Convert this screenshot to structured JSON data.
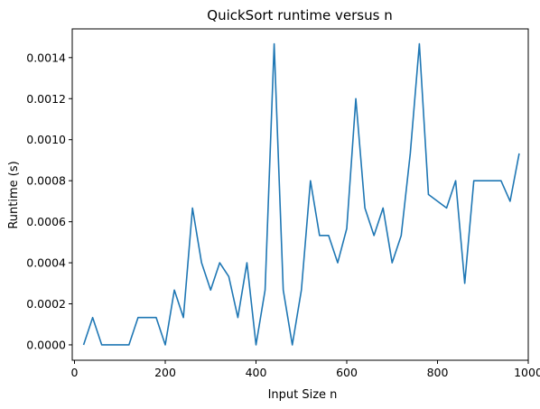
{
  "chart_data": {
    "type": "line",
    "title": "QuickSort runtime versus n",
    "xlabel": "Input Size n",
    "ylabel": "Runtime (s)",
    "xlim": [
      -5,
      1000
    ],
    "ylim": [
      -7.5e-05,
      0.00154
    ],
    "xticks": [
      0,
      200,
      400,
      600,
      800,
      1000
    ],
    "xtick_labels": [
      "0",
      "200",
      "400",
      "600",
      "800",
      "1000"
    ],
    "yticks": [
      0.0,
      0.0002,
      0.0004,
      0.0006,
      0.0008,
      0.001,
      0.0012,
      0.0014
    ],
    "ytick_labels": [
      "0.0000",
      "0.0002",
      "0.0004",
      "0.0006",
      "0.0008",
      "0.0010",
      "0.0012",
      "0.0014"
    ],
    "grid": false,
    "series": [
      {
        "color": "#1f77b4",
        "x": [
          20,
          40,
          60,
          80,
          100,
          120,
          140,
          160,
          180,
          200,
          220,
          240,
          260,
          280,
          300,
          320,
          340,
          360,
          380,
          400,
          420,
          440,
          460,
          480,
          500,
          520,
          540,
          560,
          580,
          600,
          620,
          640,
          660,
          680,
          700,
          720,
          740,
          760,
          780,
          800,
          820,
          840,
          860,
          880,
          900,
          920,
          940,
          960,
          980
        ],
        "y": [
          0.0,
          0.000133,
          0.0,
          0.0,
          0.0,
          0.0,
          0.000133,
          0.000133,
          0.000133,
          0.0,
          0.000267,
          0.000133,
          0.000667,
          0.0004,
          0.000267,
          0.0004,
          0.000333,
          0.000133,
          0.0004,
          0.0,
          0.000267,
          0.001467,
          0.000267,
          0.0,
          0.000267,
          0.0008,
          0.000533,
          0.000533,
          0.0004,
          0.000567,
          0.0012,
          0.000667,
          0.000533,
          0.000667,
          0.0004,
          0.000533,
          0.000933,
          0.001467,
          0.000733,
          0.0007,
          0.000667,
          0.0008,
          0.0003,
          0.0008,
          0.0008,
          0.0008,
          0.0008,
          0.0007,
          0.000933
        ]
      }
    ]
  }
}
